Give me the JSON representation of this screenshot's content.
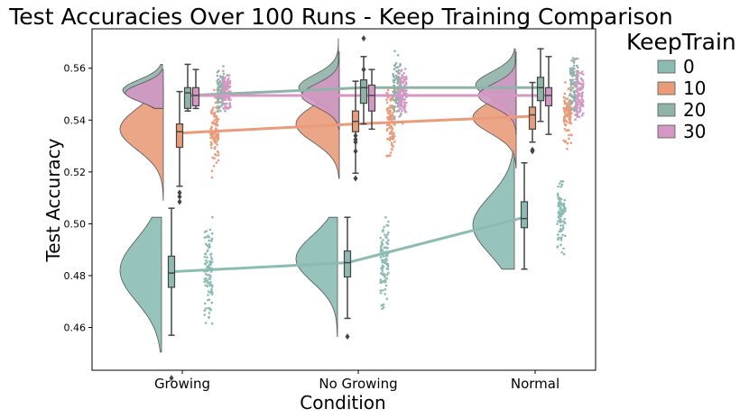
{
  "chart_data": {
    "type": "raincloud",
    "title": "Test Accuracies Over 100 Runs - Keep Training Comparison",
    "xlabel": "Condition",
    "ylabel": "Test Accuracy",
    "categories": [
      "Growing",
      "No Growing",
      "Normal"
    ],
    "yticks": [
      "0.46",
      "0.48",
      "0.50",
      "0.52",
      "0.54",
      "0.56"
    ],
    "ylim": [
      0.4435,
      0.5752
    ],
    "legend": {
      "title": "KeepTrain",
      "placement": "outside-right",
      "entries": [
        "0",
        "10",
        "20",
        "30"
      ]
    },
    "colors": [
      "#8bbcb4",
      "#e99b7a",
      "#8fb3a9",
      "#d398c3"
    ],
    "series": [
      {
        "name": "0",
        "color": "#8bbcb4",
        "mean_line": [
          0.4815,
          0.485,
          0.5025
        ],
        "box": [
          {
            "whislo": 0.457,
            "q1": 0.4755,
            "med": 0.481,
            "q3": 0.4875,
            "whishi": 0.506,
            "fliers": [
              0.4405
            ]
          },
          {
            "whislo": 0.4635,
            "q1": 0.4795,
            "med": 0.485,
            "q3": 0.4895,
            "whishi": 0.5025,
            "fliers": [
              0.4565
            ]
          },
          {
            "whislo": 0.4825,
            "q1": 0.4985,
            "med": 0.502,
            "q3": 0.5085,
            "whishi": 0.5235,
            "fliers": []
          }
        ],
        "violin": [
          {
            "lo": 0.4505,
            "hi": 0.5025,
            "mode": 0.482,
            "spread": 0.012
          },
          {
            "lo": 0.4565,
            "hi": 0.5025,
            "mode": 0.4865,
            "spread": 0.009
          },
          {
            "lo": 0.4825,
            "hi": 0.5285,
            "mode": 0.4995,
            "spread": 0.011
          }
        ],
        "strip": [
          {
            "lo": 0.4505,
            "hi": 0.5055,
            "center": 0.4815,
            "sd": 0.0085
          },
          {
            "lo": 0.4565,
            "hi": 0.5025,
            "center": 0.4855,
            "sd": 0.0075
          },
          {
            "lo": 0.4825,
            "hi": 0.5215,
            "center": 0.503,
            "sd": 0.0065
          }
        ]
      },
      {
        "name": "10",
        "color": "#e99b7a",
        "mean_line": [
          0.535,
          0.5385,
          0.5415
        ],
        "box": [
          {
            "whislo": 0.5145,
            "q1": 0.5295,
            "med": 0.5355,
            "q3": 0.5385,
            "whishi": 0.551,
            "fliers": [
              0.5085,
              0.5105,
              0.512
            ]
          },
          {
            "whislo": 0.5195,
            "q1": 0.5355,
            "med": 0.5395,
            "q3": 0.5435,
            "whishi": 0.555,
            "fliers": [
              0.5175,
              0.528,
              0.5315,
              0.5325,
              0.534
            ]
          },
          {
            "whislo": 0.5315,
            "q1": 0.5365,
            "med": 0.542,
            "q3": 0.545,
            "whishi": 0.5545,
            "fliers": [
              0.528,
              0.5285
            ]
          }
        ],
        "violin": [
          {
            "lo": 0.509,
            "hi": 0.5535,
            "mode": 0.5365,
            "spread": 0.008
          },
          {
            "lo": 0.5175,
            "hi": 0.5545,
            "mode": 0.5385,
            "spread": 0.007
          },
          {
            "lo": 0.5215,
            "hi": 0.5555,
            "mode": 0.541,
            "spread": 0.006
          }
        ],
        "strip": [
          {
            "lo": 0.5095,
            "hi": 0.554,
            "center": 0.5355,
            "sd": 0.0065
          },
          {
            "lo": 0.5215,
            "hi": 0.555,
            "center": 0.539,
            "sd": 0.006
          },
          {
            "lo": 0.5215,
            "hi": 0.555,
            "center": 0.5415,
            "sd": 0.0055
          }
        ]
      },
      {
        "name": "20",
        "color": "#8fb3a9",
        "mean_line": [
          0.5495,
          0.5525,
          0.5525
        ],
        "box": [
          {
            "whislo": 0.5435,
            "q1": 0.5445,
            "med": 0.5505,
            "q3": 0.5525,
            "whishi": 0.5615,
            "fliers": []
          },
          {
            "whislo": 0.5385,
            "q1": 0.5465,
            "med": 0.5525,
            "q3": 0.5555,
            "whishi": 0.5645,
            "fliers": [
              0.5595,
              0.5715
            ]
          },
          {
            "whislo": 0.5395,
            "q1": 0.5475,
            "med": 0.5525,
            "q3": 0.5565,
            "whishi": 0.5675,
            "fliers": []
          }
        ],
        "violin": [
          {
            "lo": 0.5445,
            "hi": 0.5615,
            "mode": 0.5515,
            "spread": 0.004
          },
          {
            "lo": 0.5385,
            "hi": 0.5715,
            "mode": 0.5525,
            "spread": 0.005
          },
          {
            "lo": 0.5395,
            "hi": 0.5675,
            "mode": 0.5535,
            "spread": 0.005
          }
        ],
        "strip": [
          {
            "lo": 0.5435,
            "hi": 0.5625,
            "center": 0.5505,
            "sd": 0.004
          },
          {
            "lo": 0.5385,
            "hi": 0.5715,
            "center": 0.5525,
            "sd": 0.0055
          },
          {
            "lo": 0.5395,
            "hi": 0.5675,
            "center": 0.5525,
            "sd": 0.0055
          }
        ]
      },
      {
        "name": "30",
        "color": "#d398c3",
        "mean_line": [
          0.5495,
          0.5495,
          0.5495
        ],
        "box": [
          {
            "whislo": 0.5445,
            "q1": 0.5455,
            "med": 0.5495,
            "q3": 0.5525,
            "whishi": 0.5595,
            "fliers": []
          },
          {
            "whislo": 0.5365,
            "q1": 0.5435,
            "med": 0.5495,
            "q3": 0.5535,
            "whishi": 0.5595,
            "fliers": []
          },
          {
            "whislo": 0.5345,
            "q1": 0.5455,
            "med": 0.5495,
            "q3": 0.5525,
            "whishi": 0.5645,
            "fliers": []
          }
        ],
        "violin": [
          {
            "lo": 0.5445,
            "hi": 0.5595,
            "mode": 0.5505,
            "spread": 0.0035
          },
          {
            "lo": 0.5365,
            "hi": 0.5665,
            "mode": 0.5495,
            "spread": 0.0045
          },
          {
            "lo": 0.5345,
            "hi": 0.5665,
            "mode": 0.5495,
            "spread": 0.0045
          }
        ],
        "strip": [
          {
            "lo": 0.5445,
            "hi": 0.5635,
            "center": 0.5505,
            "sd": 0.004
          },
          {
            "lo": 0.5365,
            "hi": 0.5665,
            "center": 0.5495,
            "sd": 0.005
          },
          {
            "lo": 0.5345,
            "hi": 0.5665,
            "center": 0.5495,
            "sd": 0.005
          }
        ]
      }
    ]
  }
}
